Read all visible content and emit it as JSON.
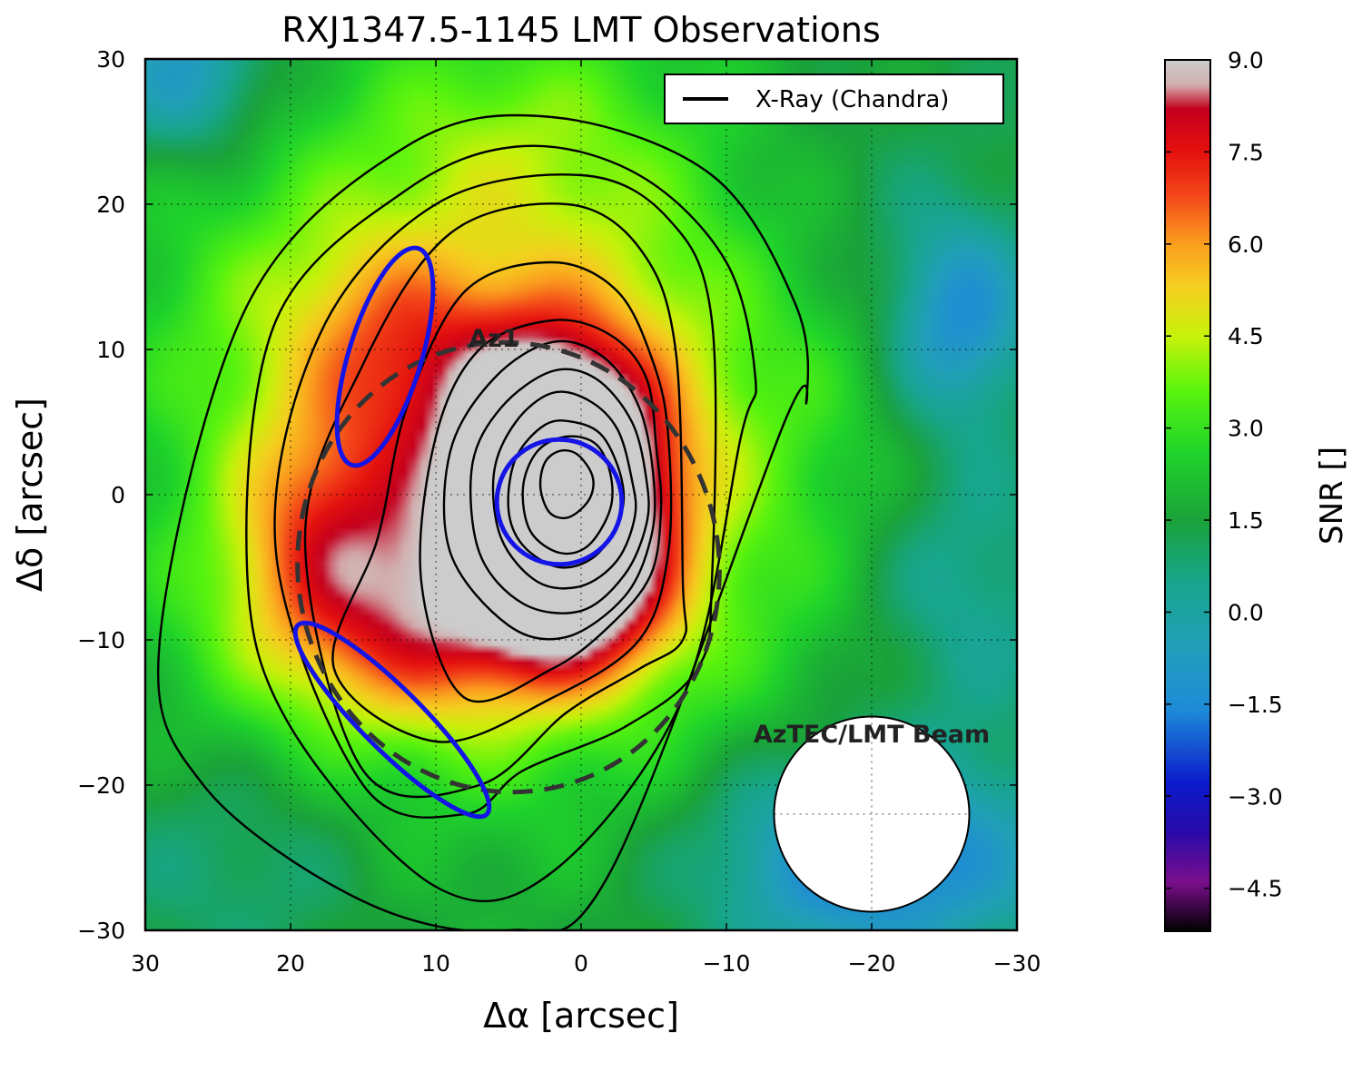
{
  "chart_data": {
    "type": "heatmap",
    "title": "RXJ1347.5-1145 LMT Observations",
    "xlabel": "Δα [arcsec]",
    "ylabel": "Δδ [arcsec]",
    "xlim": [
      30,
      -30
    ],
    "ylim": [
      -30,
      30
    ],
    "x_ticks": [
      30,
      20,
      10,
      0,
      -10,
      -20,
      -30
    ],
    "x_tick_labels": [
      "30",
      "20",
      "10",
      "0",
      "−10",
      "−20",
      "−30"
    ],
    "y_ticks": [
      30,
      20,
      10,
      0,
      -10,
      -20,
      -30
    ],
    "y_tick_labels": [
      "30",
      "20",
      "10",
      "0",
      "−10",
      "−20",
      "−30"
    ],
    "grid": true,
    "colorbar": {
      "label": "SNR []",
      "range": [
        -5.2,
        9.0
      ],
      "ticks": [
        9.0,
        7.5,
        6.0,
        4.5,
        3.0,
        1.5,
        0.0,
        -1.5,
        -3.0,
        -4.5
      ],
      "tick_labels": [
        "9.0",
        "7.5",
        "6.0",
        "4.5",
        "3.0",
        "1.5",
        "0.0",
        "−1.5",
        "−3.0",
        "−4.5"
      ],
      "colormap": "nipy_spectral",
      "color_stops": [
        {
          "value": -5.2,
          "color": "#000000"
        },
        {
          "value": -4.4,
          "color": "#7a0e8c"
        },
        {
          "value": -3.6,
          "color": "#2a0aa8"
        },
        {
          "value": -2.8,
          "color": "#0a1acb"
        },
        {
          "value": -1.6,
          "color": "#1e8ad8"
        },
        {
          "value": -0.5,
          "color": "#22a0b8"
        },
        {
          "value": 0.5,
          "color": "#17a58b"
        },
        {
          "value": 1.5,
          "color": "#1aa23a"
        },
        {
          "value": 2.6,
          "color": "#1fd42a"
        },
        {
          "value": 3.6,
          "color": "#58f40e"
        },
        {
          "value": 4.5,
          "color": "#c8f20a"
        },
        {
          "value": 5.3,
          "color": "#f5cf20"
        },
        {
          "value": 6.0,
          "color": "#fb9e1e"
        },
        {
          "value": 6.8,
          "color": "#f34619"
        },
        {
          "value": 7.5,
          "color": "#e4100e"
        },
        {
          "value": 8.2,
          "color": "#c4001e"
        },
        {
          "value": 8.6,
          "color": "#d2b0b0"
        },
        {
          "value": 9.0,
          "color": "#cccccc"
        }
      ]
    },
    "snr_sources": [
      {
        "x": 1.5,
        "y": 1.2,
        "sx": 4.8,
        "sy": 6.0,
        "amp": 9.6
      },
      {
        "x": 0.5,
        "y": -7.0,
        "sx": 4.5,
        "sy": 4.0,
        "amp": 3.8
      },
      {
        "x": 12.0,
        "y": -8.0,
        "sx": 8.0,
        "sy": 5.5,
        "amp": 4.2
      },
      {
        "x": 18.0,
        "y": -1.0,
        "sx": 4.0,
        "sy": 5.0,
        "amp": 2.0
      },
      {
        "x": 14.0,
        "y": 11.0,
        "sx": 4.0,
        "sy": 5.0,
        "amp": 1.5
      },
      {
        "x": 8.0,
        "y": 8.0,
        "sx": 5.0,
        "sy": 5.0,
        "amp": 1.5
      },
      {
        "x": 4.0,
        "y": 5.0,
        "sx": 16.0,
        "sy": 17.0,
        "amp": 4.0
      },
      {
        "x": -20.0,
        "y": -25.0,
        "sx": 8.0,
        "sy": 5.0,
        "amp": -3.5
      },
      {
        "x": -26.0,
        "y": 12.0,
        "sx": 3.5,
        "sy": 5.0,
        "amp": -3.0
      },
      {
        "x": 27.0,
        "y": 29.0,
        "sx": 4.0,
        "sy": 4.0,
        "amp": -2.5
      },
      {
        "x": -26.0,
        "y": -6.0,
        "sx": 5.0,
        "sy": 7.0,
        "amp": -1.5
      },
      {
        "x": 23.0,
        "y": -25.0,
        "sx": 6.0,
        "sy": 5.0,
        "amp": -0.9
      },
      {
        "x": -18.0,
        "y": 20.0,
        "sx": 7.0,
        "sy": 7.0,
        "amp": -0.7
      },
      {
        "x": 5.0,
        "y": 25.0,
        "sx": 7.0,
        "sy": 5.0,
        "amp": 0.9
      },
      {
        "x": 22.0,
        "y": 12.0,
        "sx": 6.0,
        "sy": 7.0,
        "amp": 0.7
      }
    ],
    "snr_background": 1.3,
    "xray_contours": [
      {
        "x": [
          -14.0,
          -15.5,
          -14.8,
          -9.0,
          2.0,
          12.0,
          23.0,
          29.0,
          26.0,
          15.0,
          5.0,
          -2.0
        ],
        "y": [
          5.0,
          6.5,
          13.0,
          22.0,
          26.0,
          24.0,
          13.0,
          -10.0,
          -20.0,
          -28.0,
          -30.0,
          -26.0
        ]
      },
      {
        "x": [
          -11.0,
          -12.0,
          -10.0,
          -4.0,
          4.0,
          12.0,
          21.0,
          23.0,
          20.0,
          10.0,
          2.0,
          -7.0
        ],
        "y": [
          4.0,
          8.0,
          16.0,
          22.0,
          24.0,
          21.0,
          12.0,
          -5.0,
          -16.0,
          -27.0,
          -26.0,
          -14.0
        ]
      },
      {
        "x": [
          -9.0,
          -9.0,
          -6.0,
          0.0,
          10.0,
          18.0,
          21.0,
          15.0,
          8.0,
          4.0,
          -3.0,
          -8.0
        ],
        "y": [
          -6.0,
          12.0,
          19.0,
          22.0,
          20.0,
          11.0,
          -4.0,
          -20.0,
          -22.0,
          -19.0,
          -16.0,
          -12.0
        ]
      },
      {
        "x": [
          -7.0,
          -6.5,
          -4.0,
          1.0,
          9.0,
          15.0,
          19.0,
          15.0,
          7.0,
          1.0,
          -4.0,
          -7.0
        ],
        "y": [
          -6.0,
          10.0,
          17.0,
          20.0,
          18.0,
          9.0,
          -3.0,
          -19.0,
          -20.0,
          -15.0,
          -12.0,
          -10.0
        ]
      },
      {
        "x": [
          -6.0,
          -5.0,
          -2.5,
          2.0,
          8.0,
          12.0,
          14.0,
          17.0,
          10.0,
          2.0,
          -4.0,
          -6.0
        ],
        "y": [
          4.0,
          9.0,
          14.0,
          16.0,
          14.0,
          6.0,
          -3.0,
          -12.0,
          -17.0,
          -14.0,
          -10.0,
          -4.0
        ]
      },
      {
        "x": [
          -5.2,
          -4.5,
          -2.0,
          2.0,
          7.0,
          10.0,
          11.0,
          8.0,
          2.0,
          -2.0,
          -4.8,
          -5.5
        ],
        "y": [
          3.0,
          8.0,
          11.0,
          12.0,
          10.0,
          4.0,
          -6.0,
          -14.0,
          -12.0,
          -9.0,
          -5.5,
          -1.0
        ]
      },
      {
        "x": [
          -5.0,
          -4.0,
          -1.5,
          2.0,
          6.0,
          9.0,
          9.0,
          5.0,
          1.0,
          -3.0,
          -4.8
        ],
        "y": [
          1.0,
          6.0,
          9.5,
          10.5,
          8.0,
          3.0,
          -4.0,
          -9.0,
          -9.8,
          -7.0,
          -3.0
        ]
      },
      {
        "x": [
          -4.5,
          -3.5,
          -1.0,
          2.0,
          5.5,
          7.5,
          7.0,
          4.0,
          0.0,
          -3.0,
          -4.5
        ],
        "y": [
          1.0,
          5.0,
          8.0,
          8.5,
          6.0,
          2.0,
          -4.0,
          -7.5,
          -8.0,
          -5.5,
          -2.0
        ]
      },
      {
        "x": [
          -3.5,
          -2.5,
          -0.5,
          2.0,
          4.5,
          6.0,
          5.5,
          3.0,
          0.0,
          -2.5,
          -3.7
        ],
        "y": [
          1.0,
          4.5,
          6.5,
          7.0,
          5.0,
          1.5,
          -3.0,
          -6.0,
          -6.3,
          -4.5,
          -1.5
        ]
      },
      {
        "x": [
          -2.8,
          -1.5,
          0.5,
          2.5,
          4.5,
          5.0,
          4.0,
          1.5,
          -1.0,
          -2.7
        ],
        "y": [
          1.0,
          4.0,
          5.0,
          4.8,
          2.5,
          -1.0,
          -3.5,
          -5.0,
          -4.2,
          -1.5
        ]
      },
      {
        "x": [
          -2.0,
          -1.0,
          1.0,
          3.0,
          4.0,
          3.5,
          1.5,
          -0.5,
          -2.0
        ],
        "y": [
          1.5,
          3.5,
          4.0,
          3.0,
          0.5,
          -2.5,
          -4.0,
          -3.5,
          -1.0
        ]
      },
      {
        "x": [
          -0.7,
          0.3,
          1.5,
          2.5,
          2.8,
          2.2,
          1.0,
          -0.2,
          -0.8
        ],
        "y": [
          1.5,
          2.8,
          3.0,
          2.2,
          0.5,
          -1.2,
          -1.6,
          -0.8,
          0.3
        ]
      }
    ],
    "az1_ellipse": {
      "cx": 5.0,
      "cy": -5.0,
      "rx": 14.5,
      "ry": 15.5,
      "angle": 8
    },
    "blue_ellipses": [
      {
        "cx": 1.5,
        "cy": -0.5,
        "rx": 4.3,
        "ry": 4.3,
        "angle": 0
      },
      {
        "cx": 13.5,
        "cy": 9.5,
        "rx": 7.8,
        "ry": 2.5,
        "angle": 73
      },
      {
        "cx": 13.0,
        "cy": -15.5,
        "rx": 9.2,
        "ry": 2.1,
        "angle": -45
      }
    ],
    "beam": {
      "x": -20.0,
      "y": -22.0,
      "radius": 4.2,
      "label": "AzTEC/LMT Beam"
    },
    "annotations": [
      {
        "text": "Az1",
        "x": 6.0,
        "y": 10.2
      }
    ],
    "legend": {
      "placement": "top-right",
      "entries": [
        {
          "label": "X-Ray (Chandra)",
          "style": "solid",
          "color": "#000000"
        }
      ]
    }
  }
}
